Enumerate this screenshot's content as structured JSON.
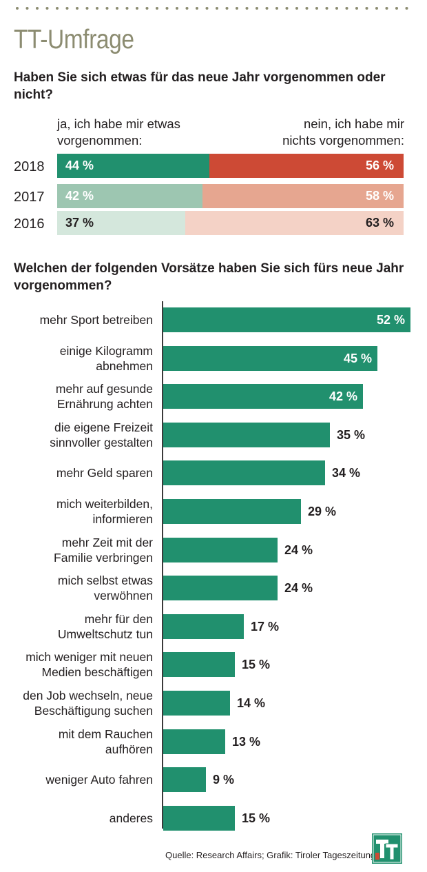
{
  "title": "TT-Umfrage",
  "colors": {
    "title": "#8c8c71",
    "bar": "#21906e",
    "yes": [
      "#21906e",
      "#9dc6b1",
      "#d4e7dc"
    ],
    "no": [
      "#cd4a35",
      "#e6a690",
      "#f4d2c6"
    ]
  },
  "chart_data": [
    {
      "type": "bar",
      "stacked": true,
      "orientation": "horizontal",
      "title": "Haben Sie sich etwas für das neue Jahr vorgenommen oder nicht?",
      "legend": {
        "yes": "ja, ich habe mir etwas\nvorgenommen:",
        "no": "nein, ich habe mir\nnichts vorgenommen:"
      },
      "categories": [
        "2018",
        "2017",
        "2016"
      ],
      "series": [
        {
          "name": "ja, ich habe mir etwas vorgenommen:",
          "values": [
            44,
            42,
            37
          ]
        },
        {
          "name": "nein, ich habe mir nichts vorgenommen:",
          "values": [
            56,
            58,
            63
          ]
        }
      ],
      "labels": {
        "yes": [
          "44 %",
          "42 %",
          "37 %"
        ],
        "no": [
          "56 %",
          "58 %",
          "63 %"
        ]
      }
    },
    {
      "type": "bar",
      "orientation": "horizontal",
      "title": "Welchen der folgenden Vorsätze haben Sie sich fürs neue Jahr vorgenommen?",
      "categories": [
        "mehr Sport betreiben",
        "einige Kilogramm\nabnehmen",
        "mehr auf gesunde\nErnährung achten",
        "die eigene Freizeit\nsinnvoller gestalten",
        "mehr Geld sparen",
        "mich weiterbilden,\ninformieren",
        "mehr Zeit mit der\nFamilie verbringen",
        "mich selbst etwas\nverwöhnen",
        "mehr für den\nUmweltschutz tun",
        "mich weniger mit neuen\nMedien beschäftigen",
        "den Job wechseln, neue\nBeschäftigung suchen",
        "mit dem Rauchen\naufhören",
        "weniger Auto fahren",
        "anderes"
      ],
      "values": [
        52,
        45,
        42,
        35,
        34,
        29,
        24,
        24,
        17,
        15,
        14,
        13,
        9,
        15
      ],
      "labels": [
        "52 %",
        "45 %",
        "42 %",
        "35 %",
        "34 %",
        "29 %",
        "24 %",
        "24 %",
        "17 %",
        "15 %",
        "14 %",
        "13 %",
        "9 %",
        "15 %"
      ],
      "unit": "%"
    }
  ],
  "source": "Quelle: Research Affairs; Grafik: Tiroler Tageszeitung",
  "logo_text": "TT"
}
